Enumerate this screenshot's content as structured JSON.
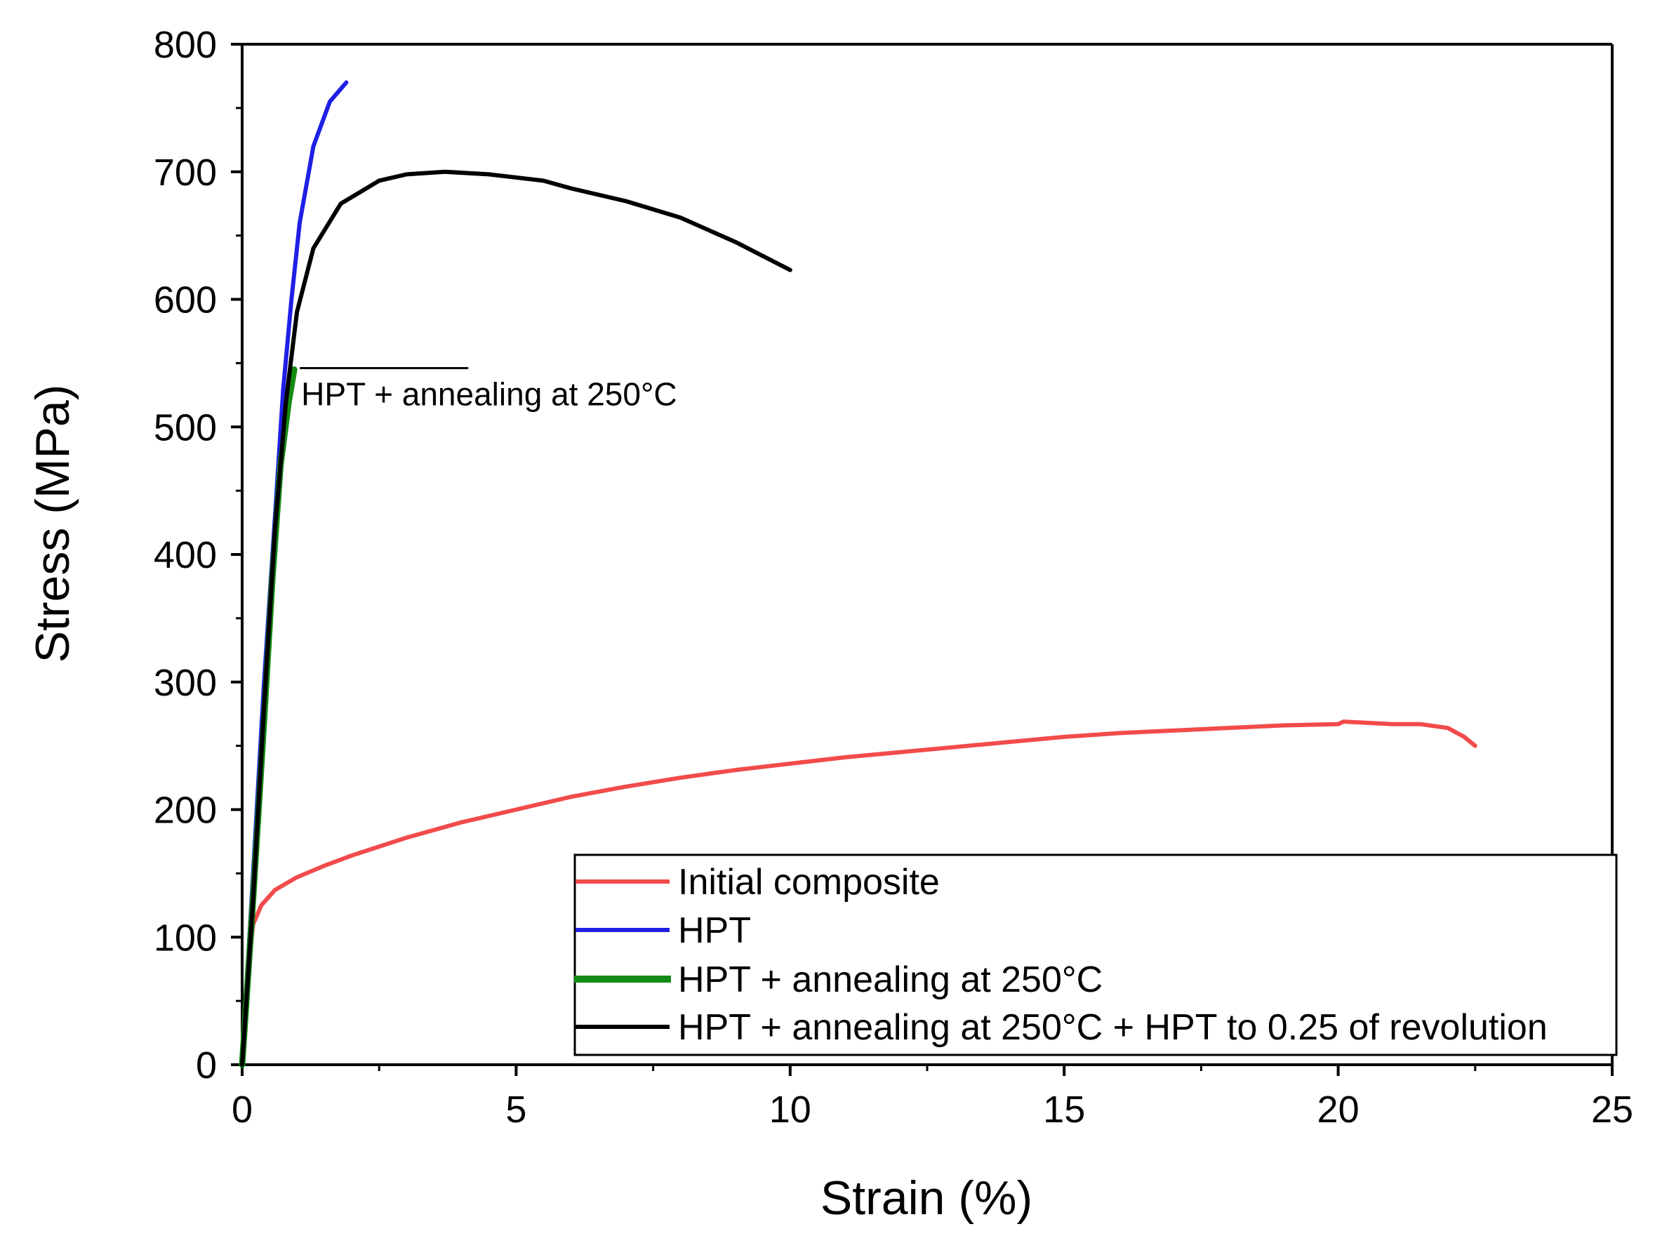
{
  "chart_data": {
    "type": "line",
    "title": "",
    "xlabel": "Strain (%)",
    "ylabel": "Stress (MPa)",
    "xlim": [
      0,
      25
    ],
    "ylim": [
      0,
      800
    ],
    "xticks": [
      0,
      5,
      10,
      15,
      20,
      25
    ],
    "yticks": [
      0,
      100,
      200,
      300,
      400,
      500,
      600,
      700,
      800
    ],
    "xtick_labels": [
      "0",
      "5",
      "10",
      "15",
      "20",
      "25"
    ],
    "ytick_labels": [
      "0",
      "100",
      "200",
      "300",
      "400",
      "500",
      "600",
      "700",
      "800"
    ],
    "grid": false,
    "legend_position": "bottom-right",
    "series": [
      {
        "name": "Initial composite",
        "color": "#f24b4b",
        "line_width": "normal",
        "points": [
          [
            0,
            0
          ],
          [
            0.1,
            70
          ],
          [
            0.2,
            110
          ],
          [
            0.35,
            125
          ],
          [
            0.6,
            137
          ],
          [
            1,
            147
          ],
          [
            1.5,
            156
          ],
          [
            2,
            164
          ],
          [
            3,
            178
          ],
          [
            4,
            190
          ],
          [
            5,
            200
          ],
          [
            6,
            210
          ],
          [
            7,
            218
          ],
          [
            8,
            225
          ],
          [
            9,
            231
          ],
          [
            10,
            236
          ],
          [
            11,
            241
          ],
          [
            12,
            245
          ],
          [
            13,
            249
          ],
          [
            14,
            253
          ],
          [
            15,
            257
          ],
          [
            16,
            260
          ],
          [
            17,
            262
          ],
          [
            18,
            264
          ],
          [
            19,
            266
          ],
          [
            20,
            267
          ],
          [
            20.1,
            269
          ],
          [
            21,
            267
          ],
          [
            21.5,
            267
          ],
          [
            22,
            264
          ],
          [
            22.3,
            257
          ],
          [
            22.5,
            250
          ]
        ]
      },
      {
        "name": "HPT",
        "color": "#1f1fe6",
        "line_width": "normal",
        "points": [
          [
            0,
            0
          ],
          [
            0.2,
            150
          ],
          [
            0.4,
            300
          ],
          [
            0.6,
            430
          ],
          [
            0.75,
            530
          ],
          [
            0.9,
            600
          ],
          [
            1.05,
            660
          ],
          [
            1.3,
            720
          ],
          [
            1.6,
            755
          ],
          [
            1.9,
            770
          ]
        ]
      },
      {
        "name": "HPT + annealing at 250°C",
        "color": "#138a13",
        "line_width": "thick",
        "points": [
          [
            0,
            0
          ],
          [
            0.2,
            130
          ],
          [
            0.4,
            270
          ],
          [
            0.55,
            380
          ],
          [
            0.7,
            470
          ],
          [
            0.85,
            520
          ],
          [
            0.95,
            545
          ]
        ]
      },
      {
        "name": "HPT + annealing at 250°C + HPT to 0.25 of revolution",
        "color": "#000000",
        "line_width": "normal",
        "points": [
          [
            0,
            0
          ],
          [
            0.2,
            130
          ],
          [
            0.4,
            280
          ],
          [
            0.6,
            420
          ],
          [
            0.8,
            520
          ],
          [
            1.0,
            590
          ],
          [
            1.3,
            640
          ],
          [
            1.8,
            675
          ],
          [
            2.5,
            693
          ],
          [
            3,
            698
          ],
          [
            3.7,
            700
          ],
          [
            4.5,
            698
          ],
          [
            5.5,
            693
          ],
          [
            6,
            687
          ],
          [
            7,
            677
          ],
          [
            8,
            664
          ],
          [
            9,
            645
          ],
          [
            10,
            623
          ]
        ]
      }
    ],
    "annotations": [
      {
        "text": "HPT + annealing at 250°C",
        "x": 0.95,
        "y": 545
      }
    ]
  }
}
